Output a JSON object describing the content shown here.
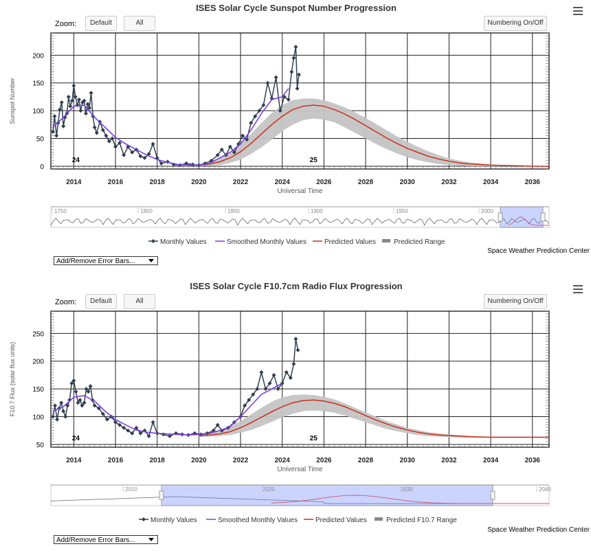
{
  "credit": "Space Weather Prediction Center",
  "colors": {
    "monthly": "#2f3f4e",
    "smoothed": "#7b3fe4",
    "predicted": "#cc2d1b",
    "range": "#c4c4c4",
    "navigator_mask": "rgba(102,133,255,0.35)"
  },
  "charts": [
    {
      "title": "ISES Solar Cycle Sunspot Number Progression",
      "zoom_label": "Zoom:",
      "btn_default": "Default",
      "btn_all": "All",
      "btn_numbering": "Numbering On/Off",
      "dropdown": "Add/Remove Error Bars...",
      "legend": [
        {
          "label": "Monthly Values",
          "kind": "monthly",
          "icon": "diamond-line-icon"
        },
        {
          "label": "Smoothed Monthly Values",
          "kind": "smoothed",
          "icon": "line-icon"
        },
        {
          "label": "Predicted Values",
          "kind": "predicted",
          "icon": "line-icon"
        },
        {
          "label": "Predicted Range",
          "kind": "range",
          "icon": "range-icon"
        }
      ],
      "navigator_labels": [
        "1750",
        "1800",
        "1850",
        "1900",
        "1950",
        "2000"
      ],
      "chart_data": {
        "type": "line",
        "title": "ISES Solar Cycle Sunspot Number Progression",
        "xlabel": "Universal Time",
        "ylabel": "Sunspot Number",
        "xlim": [
          2012.9,
          2036.8
        ],
        "ylim": [
          -5,
          240
        ],
        "x_ticks": [
          2014,
          2016,
          2018,
          2020,
          2022,
          2024,
          2026,
          2028,
          2030,
          2032,
          2034,
          2036
        ],
        "y_ticks": [
          0,
          50,
          100,
          150,
          200
        ],
        "cycle_labels": [
          {
            "x": 2014.1,
            "text": "24"
          },
          {
            "x": 2025.5,
            "text": "25"
          }
        ],
        "series": [
          {
            "name": "Monthly Values",
            "x": [
              2013.0,
              2013.08,
              2013.17,
              2013.25,
              2013.33,
              2013.42,
              2013.5,
              2013.58,
              2013.67,
              2013.75,
              2013.83,
              2013.92,
              2014.0,
              2014.08,
              2014.17,
              2014.25,
              2014.33,
              2014.42,
              2014.5,
              2014.58,
              2014.67,
              2014.75,
              2014.83,
              2014.92,
              2015.0,
              2015.1,
              2015.25,
              2015.4,
              2015.55,
              2015.7,
              2015.85,
              2016.0,
              2016.2,
              2016.4,
              2016.6,
              2016.8,
              2017.0,
              2017.2,
              2017.4,
              2017.6,
              2017.8,
              2018.0,
              2018.2,
              2018.5,
              2018.8,
              2019.1,
              2019.4,
              2019.7,
              2020.0,
              2020.3,
              2020.6,
              2020.9,
              2021.1,
              2021.3,
              2021.5,
              2021.7,
              2021.9,
              2022.1,
              2022.3,
              2022.5,
              2022.7,
              2022.9,
              2023.1,
              2023.3,
              2023.5,
              2023.7,
              2023.9,
              2024.1,
              2024.3,
              2024.45,
              2024.55,
              2024.65,
              2024.72,
              2024.8
            ],
            "y": [
              62,
              90,
              55,
              78,
              102,
              115,
              72,
              88,
              95,
              125,
              108,
              118,
              145,
              125,
              110,
              120,
              100,
              115,
              118,
              95,
              112,
              105,
              132,
              90,
              70,
              60,
              80,
              65,
              55,
              45,
              50,
              35,
              42,
              20,
              35,
              25,
              30,
              18,
              15,
              22,
              40,
              15,
              5,
              8,
              3,
              2,
              5,
              3,
              2,
              5,
              10,
              20,
              30,
              20,
              35,
              25,
              40,
              55,
              48,
              78,
              90,
              100,
              110,
              150,
              122,
              160,
              100,
              125,
              120,
              170,
              195,
              215,
              140,
              165
            ]
          },
          {
            "name": "Smoothed Monthly Values",
            "x": [
              2013.0,
              2013.5,
              2014.0,
              2014.5,
              2015.0,
              2015.5,
              2016.0,
              2016.5,
              2017.0,
              2017.5,
              2018.0,
              2018.5,
              2019.0,
              2019.5,
              2020.0,
              2020.5,
              2021.0,
              2021.5,
              2022.0,
              2022.5,
              2023.0,
              2023.5,
              2024.0,
              2024.3
            ],
            "y": [
              70,
              88,
              108,
              110,
              88,
              70,
              52,
              40,
              30,
              20,
              12,
              7,
              3,
              2,
              2,
              5,
              15,
              25,
              40,
              65,
              95,
              120,
              125,
              140
            ]
          },
          {
            "name": "Predicted Values",
            "x": [
              2020.0,
              2020.5,
              2021.0,
              2021.5,
              2022.0,
              2022.5,
              2023.0,
              2023.5,
              2024.0,
              2024.5,
              2025.0,
              2025.5,
              2026.0,
              2026.5,
              2027.0,
              2027.5,
              2028.0,
              2028.5,
              2029.0,
              2029.5,
              2030.0,
              2030.5,
              2031.0,
              2031.5,
              2032.0,
              2032.5,
              2033.0,
              2033.5,
              2034.0,
              2035.0,
              2036.0,
              2036.8
            ],
            "y": [
              2,
              4,
              8,
              15,
              26,
              41,
              58,
              75,
              90,
              102,
              108,
              110,
              108,
              102,
              94,
              84,
              73,
              62,
              51,
              41,
              32,
              25,
              18,
              13,
              9,
              6,
              4,
              3,
              2,
              1,
              0,
              0
            ]
          },
          {
            "name": "Predicted Range",
            "x": [
              2020.0,
              2020.5,
              2021.0,
              2021.5,
              2022.0,
              2022.5,
              2023.0,
              2023.5,
              2024.0,
              2024.5,
              2025.0,
              2025.5,
              2026.0,
              2026.5,
              2027.0,
              2027.5,
              2028.0,
              2028.5,
              2029.0,
              2029.5,
              2030.0,
              2030.5,
              2031.0,
              2031.5,
              2032.0,
              2032.5,
              2033.0,
              2033.5,
              2034.0,
              2035.0,
              2036.0,
              2036.8
            ],
            "low": [
              0,
              1,
              2,
              6,
              12,
              22,
              34,
              48,
              63,
              75,
              83,
              86,
              84,
              79,
              70,
              60,
              50,
              40,
              31,
              23,
              16,
              11,
              7,
              4,
              2,
              1,
              0,
              0,
              0,
              0,
              0,
              0
            ],
            "high": [
              4,
              8,
              15,
              25,
              40,
              58,
              78,
              96,
              110,
              119,
              122,
              122,
              119,
              113,
              106,
              97,
              87,
              76,
              65,
              54,
              44,
              35,
              27,
              20,
              14,
              10,
              7,
              5,
              3,
              2,
              1,
              0
            ]
          }
        ]
      }
    },
    {
      "title": "ISES Solar Cycle F10.7cm Radio Flux Progression",
      "zoom_label": "Zoom:",
      "btn_default": "Default",
      "btn_all": "All",
      "btn_numbering": "Numbering On/Off",
      "dropdown": "Add/Remove Error Bars...",
      "legend": [
        {
          "label": "Monthly Values",
          "kind": "monthly",
          "icon": "diamond-line-icon"
        },
        {
          "label": "Smoothed Monthly Values",
          "kind": "smoothed",
          "icon": "line-icon"
        },
        {
          "label": "Predicted Values",
          "kind": "predicted",
          "icon": "line-icon"
        },
        {
          "label": "Predicted F10.7 Range",
          "kind": "range",
          "icon": "range-icon"
        }
      ],
      "navigator_labels": [
        "2010",
        "2020",
        "2030",
        "2040"
      ],
      "chart_data": {
        "type": "line",
        "title": "ISES Solar Cycle F10.7cm Radio Flux Progression",
        "xlabel": "Universal Time",
        "ylabel": "F10.7 Flux (solar flux units)",
        "xlim": [
          2012.9,
          2036.8
        ],
        "ylim": [
          45,
          290
        ],
        "x_ticks": [
          2014,
          2016,
          2018,
          2020,
          2022,
          2024,
          2026,
          2028,
          2030,
          2032,
          2034,
          2036
        ],
        "y_ticks": [
          50,
          100,
          150,
          200,
          250
        ],
        "cycle_labels": [
          {
            "x": 2014.1,
            "text": "24"
          },
          {
            "x": 2025.5,
            "text": "25"
          }
        ],
        "series": [
          {
            "name": "Monthly Values",
            "x": [
              2013.0,
              2013.1,
              2013.2,
              2013.3,
              2013.4,
              2013.5,
              2013.6,
              2013.7,
              2013.8,
              2013.9,
              2014.0,
              2014.1,
              2014.2,
              2014.3,
              2014.4,
              2014.5,
              2014.6,
              2014.7,
              2014.8,
              2014.9,
              2015.0,
              2015.2,
              2015.4,
              2015.6,
              2015.8,
              2016.0,
              2016.2,
              2016.4,
              2016.6,
              2016.8,
              2017.0,
              2017.2,
              2017.4,
              2017.6,
              2017.8,
              2018.0,
              2018.3,
              2018.6,
              2018.9,
              2019.2,
              2019.5,
              2019.8,
              2020.1,
              2020.4,
              2020.7,
              2020.9,
              2021.1,
              2021.4,
              2021.7,
              2022.0,
              2022.2,
              2022.4,
              2022.6,
              2022.8,
              2023.0,
              2023.2,
              2023.4,
              2023.6,
              2023.8,
              2024.0,
              2024.2,
              2024.4,
              2024.55,
              2024.65,
              2024.75
            ],
            "y": [
              100,
              120,
              95,
              115,
              125,
              110,
              100,
              120,
              130,
              160,
              165,
              145,
              125,
              130,
              120,
              125,
              150,
              145,
              155,
              130,
              120,
              115,
              105,
              95,
              100,
              90,
              85,
              80,
              75,
              70,
              80,
              70,
              75,
              65,
              90,
              70,
              68,
              65,
              70,
              68,
              67,
              70,
              68,
              70,
              75,
              85,
              75,
              80,
              90,
              100,
              120,
              130,
              140,
              150,
              180,
              150,
              160,
              175,
              150,
              160,
              180,
              170,
              195,
              240,
              220
            ]
          },
          {
            "name": "Smoothed Monthly Values",
            "x": [
              2013.0,
              2013.5,
              2014.0,
              2014.5,
              2015.0,
              2015.5,
              2016.0,
              2016.5,
              2017.0,
              2017.5,
              2018.0,
              2018.5,
              2019.0,
              2019.5,
              2020.0,
              2020.5,
              2021.0,
              2021.5,
              2022.0,
              2022.5,
              2023.0,
              2023.5,
              2024.0
            ],
            "y": [
              110,
              118,
              135,
              138,
              128,
              110,
              95,
              85,
              76,
              72,
              70,
              69,
              68,
              67,
              68,
              70,
              75,
              82,
              100,
              120,
              140,
              150,
              160
            ]
          },
          {
            "name": "Predicted Values",
            "x": [
              2020.0,
              2020.5,
              2021.0,
              2021.5,
              2022.0,
              2022.5,
              2023.0,
              2023.5,
              2024.0,
              2024.5,
              2025.0,
              2025.5,
              2026.0,
              2026.5,
              2027.0,
              2027.5,
              2028.0,
              2028.5,
              2029.0,
              2029.5,
              2030.0,
              2030.5,
              2031.0,
              2031.5,
              2032.0,
              2033.0,
              2034.0,
              2035.0,
              2036.0,
              2036.8
            ],
            "y": [
              66,
              67,
              69,
              73,
              80,
              89,
              99,
              109,
              118,
              125,
              129,
              130,
              128,
              124,
              118,
              110,
              102,
              94,
              87,
              81,
              76,
              72,
              69,
              67,
              66,
              64,
              63,
              63,
              63,
              63
            ]
          },
          {
            "name": "Predicted F10.7 Range",
            "x": [
              2020.0,
              2020.5,
              2021.0,
              2021.5,
              2022.0,
              2022.5,
              2023.0,
              2023.5,
              2024.0,
              2024.5,
              2025.0,
              2025.5,
              2026.0,
              2026.5,
              2027.0,
              2027.5,
              2028.0,
              2028.5,
              2029.0,
              2029.5,
              2030.0,
              2030.5,
              2031.0,
              2031.5,
              2032.0,
              2033.0,
              2034.0,
              2035.0,
              2036.0,
              2036.8
            ],
            "low": [
              63,
              64,
              65,
              67,
              71,
              76,
              83,
              91,
              99,
              105,
              110,
              111,
              110,
              107,
              102,
              96,
              90,
              84,
              78,
              74,
              70,
              67,
              65,
              64,
              63,
              62,
              62,
              62,
              62,
              62
            ],
            "high": [
              70,
              72,
              76,
              82,
              92,
              104,
              116,
              127,
              135,
              139,
              140,
              139,
              136,
              131,
              124,
              116,
              108,
              100,
              92,
              86,
              80,
              76,
              72,
              70,
              68,
              65,
              64,
              64,
              64,
              63
            ]
          }
        ]
      }
    }
  ]
}
